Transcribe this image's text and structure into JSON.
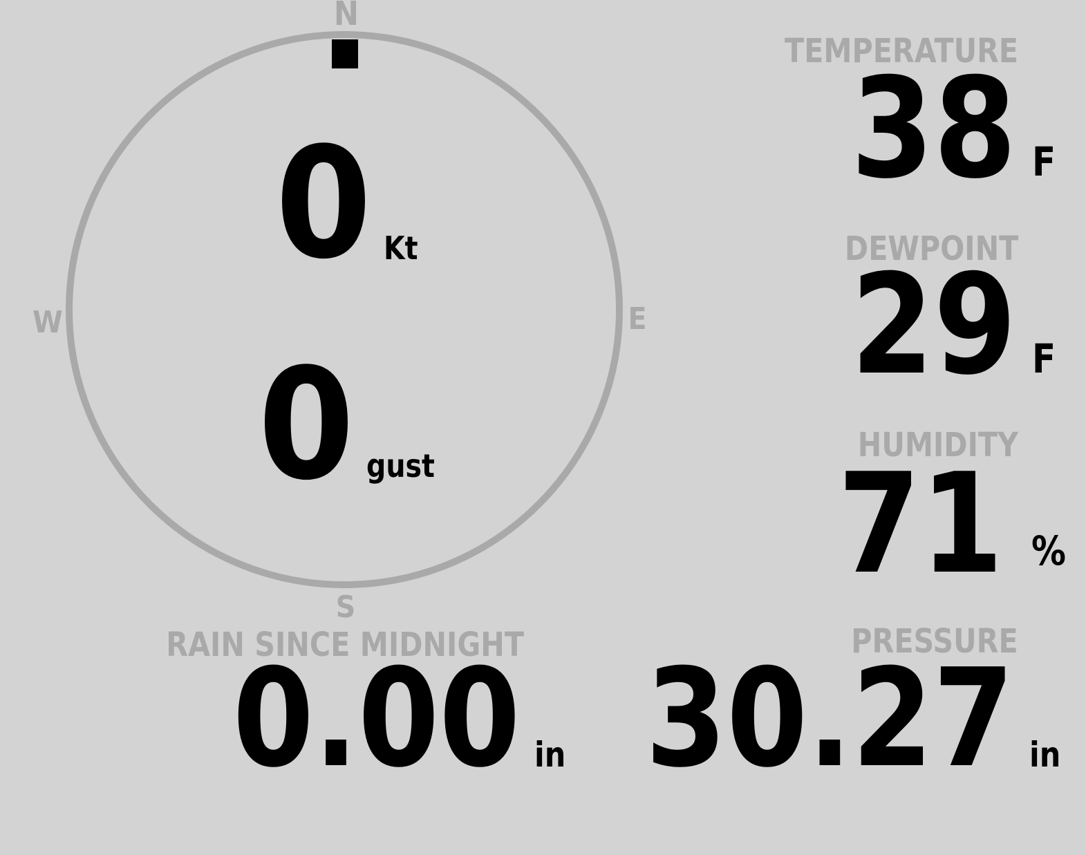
{
  "colors": {
    "background": "#d3d3d3",
    "label": "#a9a9a9",
    "value": "#000000",
    "compass_ring": "#a9a9a9",
    "direction_marker": "#000000"
  },
  "wind": {
    "compass": {
      "north": "N",
      "east": "E",
      "south": "S",
      "west": "W"
    },
    "direction_deg": 0,
    "speed": "0",
    "speed_unit": "Kt",
    "gust": "0",
    "gust_unit": "gust"
  },
  "temperature": {
    "label": "TEMPERATURE",
    "value": "38",
    "unit": "F"
  },
  "dewpoint": {
    "label": "DEWPOINT",
    "value": "29",
    "unit": "F"
  },
  "humidity": {
    "label": "HUMIDITY",
    "value": "71",
    "unit": "%"
  },
  "pressure": {
    "label": "PRESSURE",
    "value": "30.27",
    "unit": "in"
  },
  "rain": {
    "label": "RAIN SINCE MIDNIGHT",
    "value": "0.00",
    "unit": "in"
  }
}
